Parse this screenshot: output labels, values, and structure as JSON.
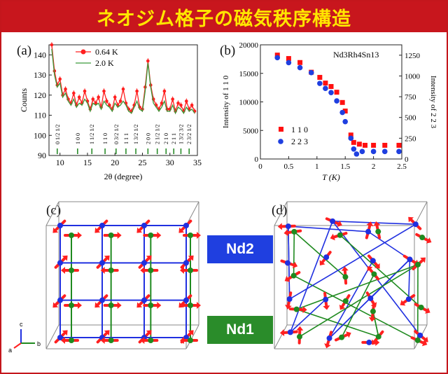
{
  "title": "ネオジム格子の磁気秩序構造",
  "panels": {
    "a": {
      "label": "(a)"
    },
    "b": {
      "label": "(b)"
    },
    "c": {
      "label": "(c)"
    },
    "d": {
      "label": "(d)"
    }
  },
  "legend_boxes": {
    "nd2": {
      "label": "Nd2",
      "color": "#1f3fe0"
    },
    "nd1": {
      "label": "Nd1",
      "color": "#2a8c2a"
    }
  },
  "axes_triad": {
    "c": "c",
    "a": "a",
    "b": "b"
  },
  "colors": {
    "title_bg": "#c8161d",
    "title_text": "#ffe600",
    "red": "#ff2020",
    "green": "#1f8a1f",
    "blue": "#2030e0"
  },
  "chart_data": [
    {
      "type": "line",
      "panel": "a",
      "xlabel": "2θ (degree)",
      "ylabel": "Counts",
      "xlim": [
        8,
        35
      ],
      "ylim": [
        90,
        145
      ],
      "xticks": [
        10,
        15,
        20,
        25,
        30,
        35
      ],
      "yticks": [
        90,
        100,
        110,
        120,
        130,
        140
      ],
      "series": [
        {
          "name": "0.64 K",
          "color": "#ff2020",
          "x": [
            8.5,
            9,
            9.5,
            10,
            10.5,
            11,
            11.5,
            12,
            12.5,
            13,
            13.5,
            14,
            14.5,
            15,
            15.5,
            16,
            16.5,
            17,
            17.5,
            18,
            18.5,
            19,
            19.5,
            20,
            20.5,
            21,
            21.5,
            22,
            22.5,
            23,
            23.5,
            24,
            24.5,
            25,
            25.5,
            26,
            26.5,
            27,
            27.5,
            28,
            28.5,
            29,
            29.5,
            30,
            30.5,
            31,
            31.5,
            32,
            32.5,
            33,
            33.5,
            34,
            34.5
          ],
          "y": [
            145,
            132,
            125,
            128,
            120,
            123,
            118,
            116,
            121,
            115,
            119,
            116,
            122,
            117,
            113,
            118,
            116,
            119,
            114,
            122,
            117,
            115,
            113,
            119,
            115,
            117,
            123,
            116,
            113,
            112,
            115,
            122,
            114,
            113,
            124,
            137,
            125,
            118,
            115,
            113,
            116,
            122,
            113,
            113,
            118,
            112,
            116,
            115,
            112,
            117,
            113,
            115,
            112
          ]
        },
        {
          "name": "2.0 K",
          "color": "#3a9a3a",
          "x": [
            8.5,
            9,
            9.5,
            10,
            10.5,
            11,
            11.5,
            12,
            12.5,
            13,
            13.5,
            14,
            14.5,
            15,
            15.5,
            16,
            16.5,
            17,
            17.5,
            18,
            18.5,
            19,
            19.5,
            20,
            20.5,
            21,
            21.5,
            22,
            22.5,
            23,
            23.5,
            24,
            24.5,
            25,
            25.5,
            26,
            26.5,
            27,
            27.5,
            28,
            28.5,
            29,
            29.5,
            30,
            30.5,
            31,
            31.5,
            32,
            32.5,
            33,
            33.5,
            34,
            34.5
          ],
          "y": [
            143,
            130,
            124,
            126,
            119,
            121,
            117,
            115,
            118,
            114,
            116,
            115,
            118,
            116,
            112,
            116,
            115,
            116,
            113,
            117,
            115,
            114,
            112,
            116,
            114,
            115,
            117,
            115,
            112,
            111,
            114,
            117,
            113,
            112,
            122,
            136,
            124,
            116,
            114,
            112,
            114,
            117,
            112,
            112,
            115,
            111,
            114,
            113,
            111,
            114,
            112,
            113,
            111
          ]
        }
      ],
      "peak_labels": [
        {
          "x": 9.5,
          "text": "0 1/2 1/2"
        },
        {
          "x": 13.2,
          "text": "1 0 0"
        },
        {
          "x": 15.8,
          "text": "1 1/2 1/2"
        },
        {
          "x": 18.2,
          "text": "1 1 0"
        },
        {
          "x": 20.2,
          "text": "0 3/2 1/2"
        },
        {
          "x": 22.0,
          "text": "1 1 1"
        },
        {
          "x": 23.8,
          "text": "1 3/2 1/2"
        },
        {
          "x": 26.0,
          "text": "2 0 0"
        },
        {
          "x": 27.7,
          "text": "2 1/2 1/2"
        },
        {
          "x": 29.3,
          "text": "2 1 0"
        },
        {
          "x": 30.7,
          "text": "2 1 1"
        },
        {
          "x": 32.0,
          "text": "1 3/2 3/2"
        },
        {
          "x": 33.5,
          "text": "2 3/2 1/2"
        }
      ]
    },
    {
      "type": "scatter",
      "panel": "b",
      "title": "Nd3Rh4Sn13",
      "xlabel": "T (K)",
      "ylabel": "Intensity of 1 1 0",
      "ylabel_right": "Intensity of 2 2 3",
      "xlim": [
        0,
        2.5
      ],
      "ylim": [
        0,
        20000
      ],
      "ylim_right": [
        0,
        1375
      ],
      "xticks": [
        0,
        0.5,
        1,
        1.5,
        2,
        2.5
      ],
      "yticks": [
        0,
        5000,
        10000,
        15000,
        20000
      ],
      "yticks_right": [
        0,
        250,
        500,
        750,
        1000,
        1250
      ],
      "series": [
        {
          "name": "1 1 0",
          "marker": "square",
          "color": "#ff1010",
          "x": [
            0.3,
            0.5,
            0.7,
            0.9,
            1.05,
            1.15,
            1.25,
            1.35,
            1.45,
            1.5,
            1.6,
            1.65,
            1.75,
            1.85,
            2.0,
            2.2,
            2.45
          ],
          "y": [
            18200,
            17600,
            16900,
            15200,
            14300,
            13300,
            12700,
            11700,
            9900,
            8400,
            4200,
            2900,
            2600,
            2400,
            2400,
            2400,
            2400
          ]
        },
        {
          "name": "2 2 3",
          "marker": "circle",
          "color": "#1f3fe0",
          "x": [
            0.3,
            0.5,
            0.7,
            0.9,
            1.05,
            1.15,
            1.25,
            1.35,
            1.45,
            1.5,
            1.6,
            1.65,
            1.7,
            1.8,
            2.0,
            2.2,
            2.45
          ],
          "y": [
            1220,
            1160,
            1100,
            1040,
            910,
            850,
            800,
            700,
            560,
            450,
            250,
            120,
            60,
            90,
            90,
            90,
            90
          ]
        }
      ]
    }
  ]
}
